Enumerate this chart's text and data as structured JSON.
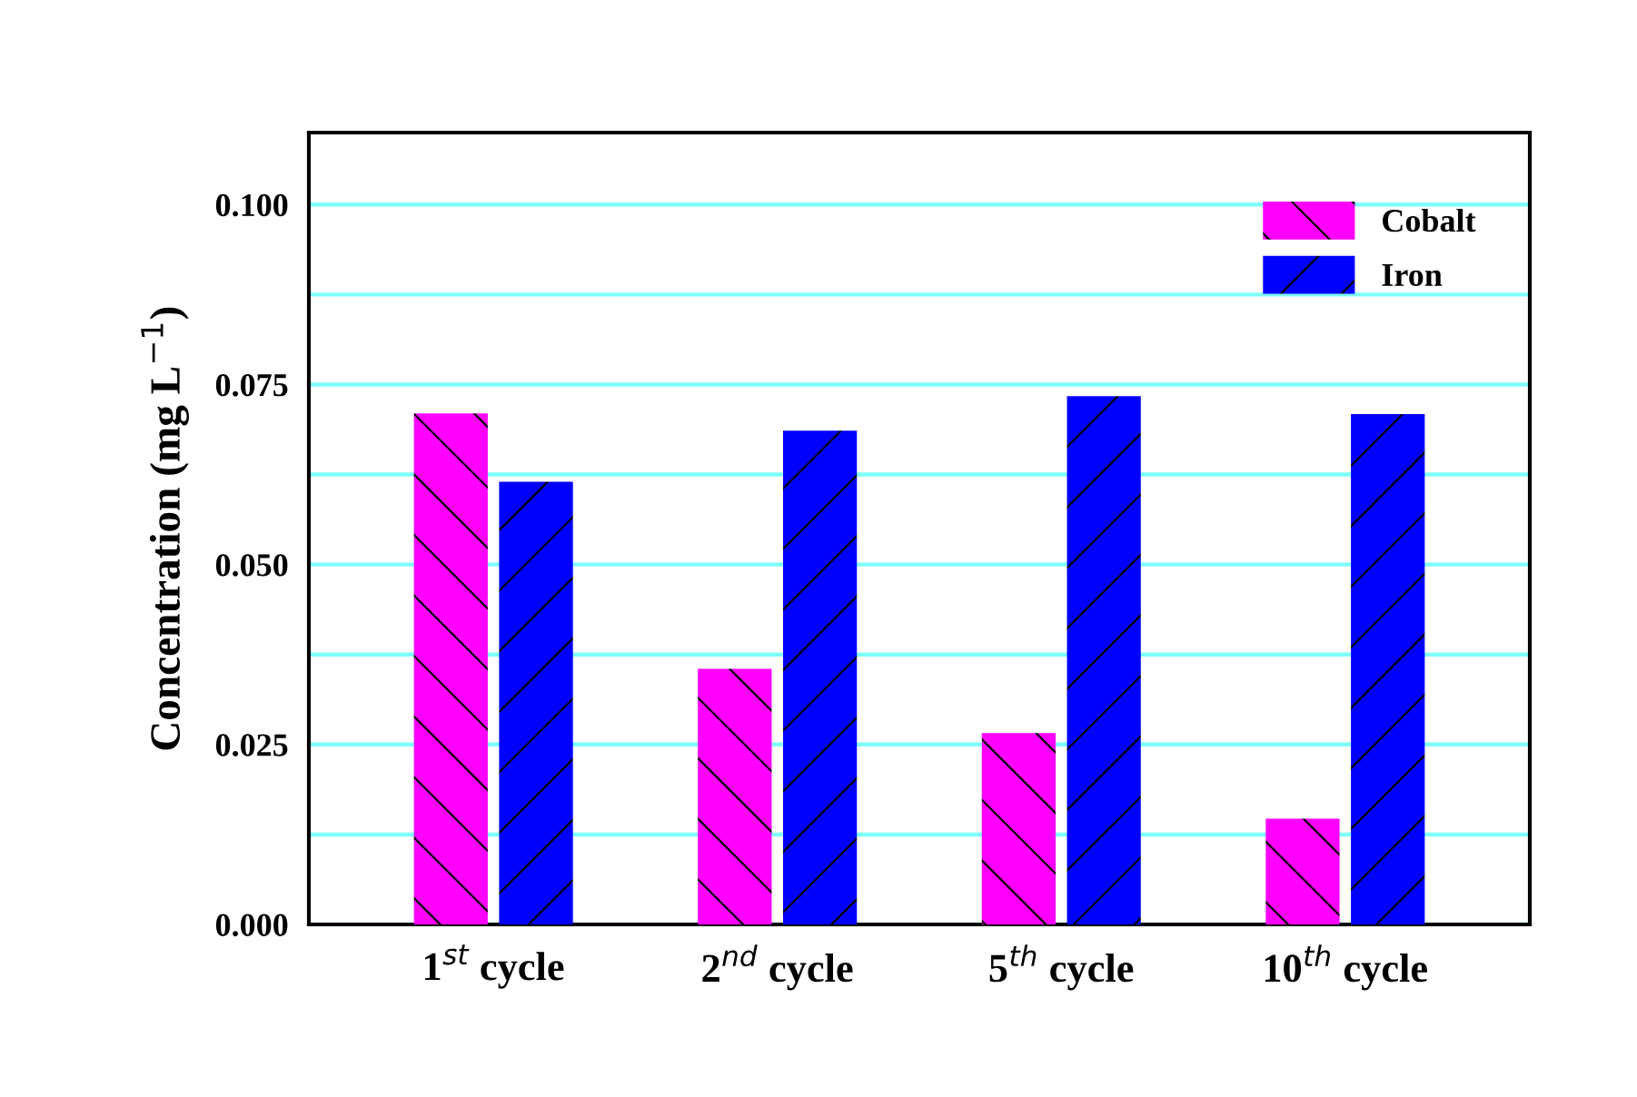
{
  "chart_data": {
    "type": "bar",
    "ylabel": "Concentration (mg L$^{−1}$)",
    "categories": [
      "1$^{st}$ cycle",
      "2$^{nd}$ cycle",
      "5$^{th}$ cycle",
      "10$^{th}$ cycle"
    ],
    "series": [
      {
        "name": "Cobalt",
        "color": "#ff00ff",
        "values": [
          0.071,
          0.0355,
          0.0266,
          0.0147
        ]
      },
      {
        "name": "Iron",
        "color": "#0000ff",
        "values": [
          0.0615,
          0.0686,
          0.0734,
          0.0709
        ]
      }
    ],
    "ylim": [
      0,
      0.11
    ],
    "yticks": [
      {
        "value": 0,
        "label": "0.000"
      },
      {
        "value": 0.0125,
        "label": null
      },
      {
        "value": 0.025,
        "label": "0.025"
      },
      {
        "value": 0.0375,
        "label": null
      },
      {
        "value": 0.05,
        "label": "0.050"
      },
      {
        "value": 0.0625,
        "label": null
      },
      {
        "value": 0.075,
        "label": "0.075"
      },
      {
        "value": 0.0875,
        "label": null
      },
      {
        "value": 0.1,
        "label": "0.100"
      }
    ],
    "grid": "y",
    "legend": "top right"
  }
}
